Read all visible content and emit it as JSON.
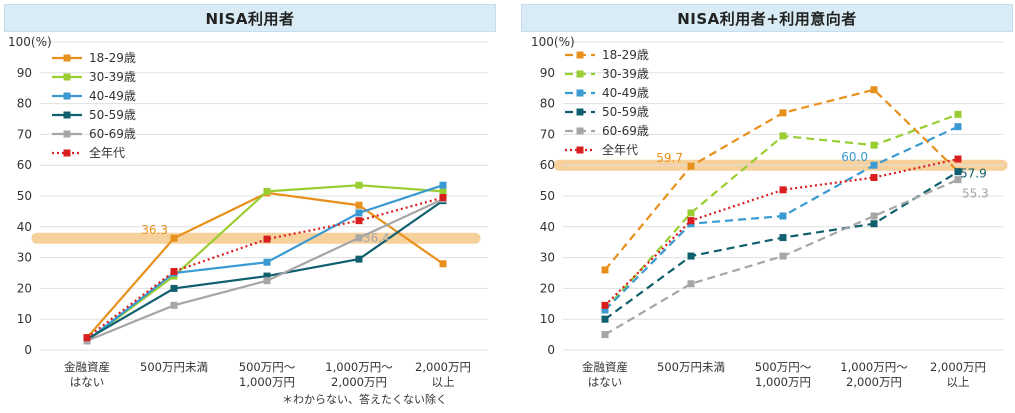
{
  "footnote": "＊わからない、答えたくない除く",
  "chart_data": [
    {
      "type": "line",
      "title": "NISA利用者",
      "ylabel": "100(%)",
      "ylim": [
        0,
        100
      ],
      "yticks": [
        "0",
        "10",
        "20",
        "30",
        "40",
        "50",
        "60",
        "70",
        "80",
        "90"
      ],
      "categories": [
        [
          "金融資産",
          "はない"
        ],
        [
          "500万円未満"
        ],
        [
          "500万円〜",
          "1,000万円"
        ],
        [
          "1,000万円〜",
          "2,000万円"
        ],
        [
          "2,000万円",
          "以上"
        ]
      ],
      "series": [
        {
          "name": "18-29歳",
          "color": "#e8901c",
          "dash": false,
          "values": [
            4,
            36.3,
            51,
            47,
            28
          ]
        },
        {
          "name": "30-39歳",
          "color": "#9acd32",
          "dash": false,
          "values": [
            3,
            24,
            51.5,
            53.5,
            51.5
          ]
        },
        {
          "name": "40-49歳",
          "color": "#3a9ad1",
          "dash": false,
          "values": [
            3,
            25,
            28.5,
            44.5,
            53.5
          ]
        },
        {
          "name": "50-59歳",
          "color": "#0f5f6e",
          "dash": false,
          "values": [
            3.5,
            20,
            24,
            29.5,
            48.5
          ]
        },
        {
          "name": "60-69歳",
          "color": "#a6a6a6",
          "dash": false,
          "values": [
            3,
            14.5,
            22.5,
            36.4,
            49
          ]
        },
        {
          "name": "全年代",
          "color": "#d81e1e",
          "dash": true,
          "values": [
            4,
            25.5,
            36,
            42,
            49.5
          ]
        }
      ],
      "annotations": [
        {
          "text": "36.3",
          "series": "18-29歳",
          "index": 1
        },
        {
          "text": "36.4",
          "series": "60-69歳",
          "index": 3
        }
      ],
      "highlight_value": 36.3
    },
    {
      "type": "line",
      "title": "NISA利用者+利用意向者",
      "ylabel": "100(%)",
      "ylim": [
        0,
        100
      ],
      "yticks": [
        "0",
        "10",
        "20",
        "30",
        "40",
        "50",
        "60",
        "70",
        "80",
        "90"
      ],
      "categories": [
        [
          "金融資産",
          "はない"
        ],
        [
          "500万円未満"
        ],
        [
          "500万円〜",
          "1,000万円"
        ],
        [
          "1,000万円〜",
          "2,000万円"
        ],
        [
          "2,000万円",
          "以上"
        ]
      ],
      "series": [
        {
          "name": "18-29歳",
          "color": "#e8901c",
          "dash": true,
          "values": [
            26,
            59.7,
            77,
            84.5,
            58
          ]
        },
        {
          "name": "30-39歳",
          "color": "#9acd32",
          "dash": true,
          "values": [
            13,
            44.5,
            69.5,
            66.5,
            76.5
          ]
        },
        {
          "name": "40-49歳",
          "color": "#3a9ad1",
          "dash": true,
          "values": [
            13,
            41,
            43.5,
            60,
            72.5
          ]
        },
        {
          "name": "50-59歳",
          "color": "#0f5f6e",
          "dash": true,
          "values": [
            10,
            30.5,
            36.5,
            41,
            57.9
          ]
        },
        {
          "name": "60-69歳",
          "color": "#a6a6a6",
          "dash": true,
          "values": [
            5,
            21.5,
            30.5,
            43.5,
            55.3
          ]
        },
        {
          "name": "全年代",
          "color": "#d81e1e",
          "dash": true,
          "dotted": true,
          "values": [
            14.5,
            42,
            52,
            56,
            62
          ]
        }
      ],
      "annotations": [
        {
          "text": "59.7",
          "series": "18-29歳",
          "index": 1
        },
        {
          "text": "60.0",
          "series": "40-49歳",
          "index": 3
        },
        {
          "text": "57.9",
          "series": "50-59歳",
          "index": 4
        },
        {
          "text": "55.3",
          "series": "60-69歳",
          "index": 4
        }
      ],
      "highlight_value": 60
    }
  ]
}
